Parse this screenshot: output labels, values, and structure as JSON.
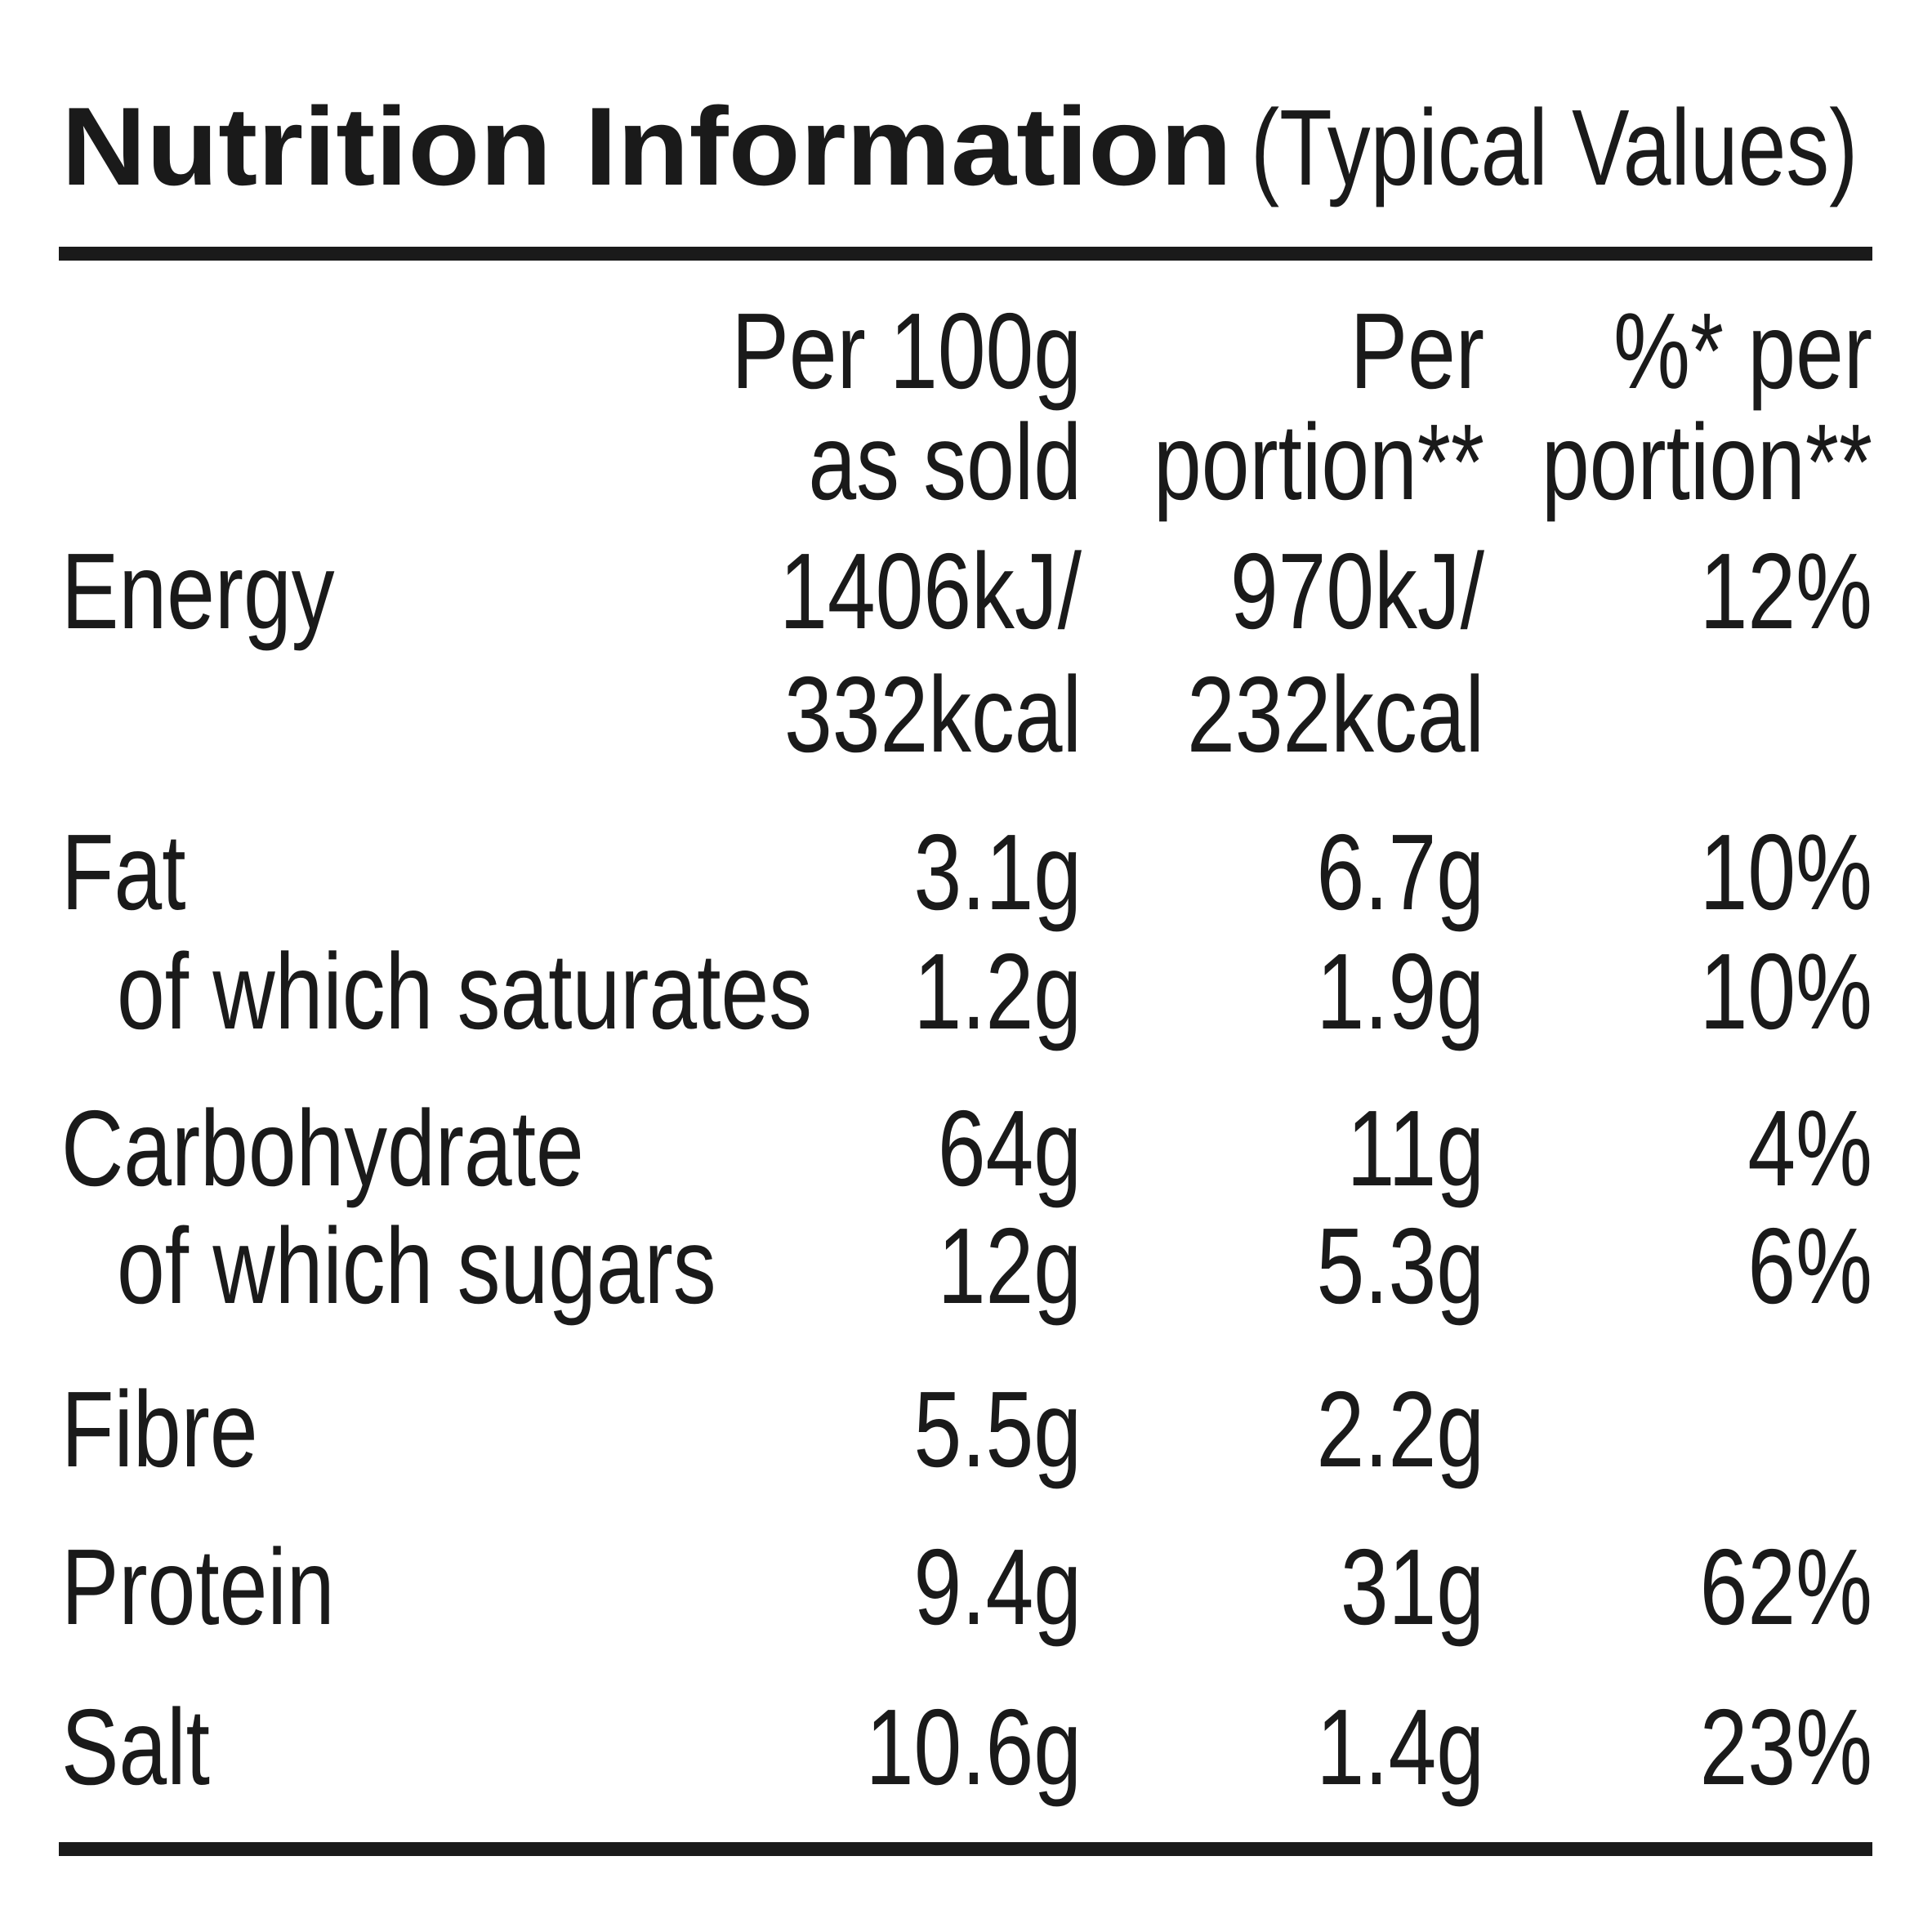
{
  "header": {
    "title": "Nutrition Information",
    "subtitle": "(Typical Values)"
  },
  "table": {
    "columns": [
      [
        "Per 100g",
        "as sold"
      ],
      [
        "Per",
        "portion**"
      ],
      [
        "%* per",
        "portion**"
      ]
    ],
    "rows": [
      {
        "label": "Energy",
        "values": [
          [
            "1406kJ/",
            "332kcal"
          ],
          [
            "970kJ/",
            "232kcal"
          ],
          [
            "12%"
          ]
        ]
      },
      {
        "label": "Fat",
        "values": [
          [
            "3.1g"
          ],
          [
            "6.7g"
          ],
          [
            "10%"
          ]
        ]
      },
      {
        "label": "of which saturates",
        "values": [
          [
            "1.2g"
          ],
          [
            "1.9g"
          ],
          [
            "10%"
          ]
        ]
      },
      {
        "label": "Carbohydrate",
        "values": [
          [
            "64g"
          ],
          [
            "11g"
          ],
          [
            "4%"
          ]
        ]
      },
      {
        "label": "of which sugars",
        "values": [
          [
            "12g"
          ],
          [
            "5.3g"
          ],
          [
            "6%"
          ]
        ]
      },
      {
        "label": "Fibre",
        "values": [
          [
            "5.5g"
          ],
          [
            "2.2g"
          ]
        ]
      },
      {
        "label": "Protein",
        "values": [
          [
            "9.4g"
          ],
          [
            "31g"
          ],
          [
            "62%"
          ]
        ]
      },
      {
        "label": "Salt",
        "values": [
          [
            "10.6g"
          ],
          [
            "1.4g"
          ],
          [
            "23%"
          ]
        ]
      }
    ]
  }
}
